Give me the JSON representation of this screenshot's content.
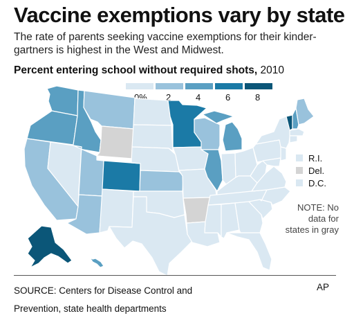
{
  "header": {
    "title": "Vaccine exemptions vary by state",
    "subtitle": "The rate of parents seeking vaccine exemptions for their kinder-gartners is highest in the West and Midwest.",
    "chart_title_bold": "Percent entering school without required shots,",
    "chart_title_year": " 2010"
  },
  "legend": {
    "colors": [
      "#dae8f2",
      "#99c2dc",
      "#5a9fc2",
      "#1b7aa6",
      "#0b5678"
    ],
    "ticks": [
      "0%",
      "2",
      "4",
      "6",
      "8"
    ]
  },
  "small_states": [
    {
      "label": "R.I.",
      "color": "#dae8f2"
    },
    {
      "label": "Del.",
      "color": "#d4d4d4"
    },
    {
      "label": "D.C.",
      "color": "#dae8f2"
    }
  ],
  "note": "NOTE: No data for states in gray",
  "source": "SOURCE: Centers for Disease Control and Prevention, state health departments",
  "credit": "AP",
  "colors": {
    "no_data": "#d4d4d4"
  }
}
